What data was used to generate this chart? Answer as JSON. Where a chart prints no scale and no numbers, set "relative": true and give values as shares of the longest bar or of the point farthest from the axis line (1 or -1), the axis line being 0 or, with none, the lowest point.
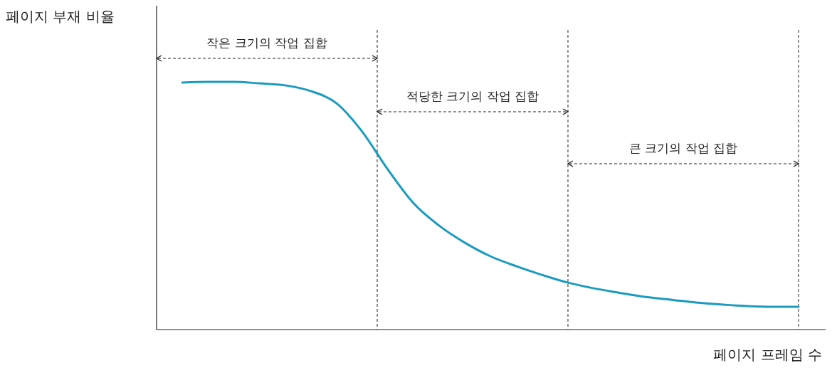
{
  "chart_data": {
    "type": "line",
    "relative": true,
    "xlabel": "페이지 프레임 수",
    "ylabel": "페이지 부재 비율",
    "categories": [
      null,
      null,
      null,
      null,
      null,
      null,
      null,
      null,
      null,
      null,
      null,
      null,
      null,
      null,
      null,
      null,
      null,
      null,
      null,
      null,
      null,
      null,
      null,
      null,
      null,
      null
    ],
    "values": [
      null,
      0.997,
      1,
      1,
      0.994,
      0.986,
      0.963,
      0.914,
      0.8,
      0.647,
      0.511,
      0.42,
      0.351,
      0.296,
      0.256,
      0.221,
      0.19,
      0.167,
      0.149,
      0.132,
      0.121,
      0.109,
      0.101,
      0.095,
      0.092,
      0.092
    ],
    "color": "#1a9bbf",
    "annotations": [
      "작은 크기의 작업 집합",
      "적당한 크기의 작업 집합",
      "큰 크기의 작업 집합"
    ]
  }
}
